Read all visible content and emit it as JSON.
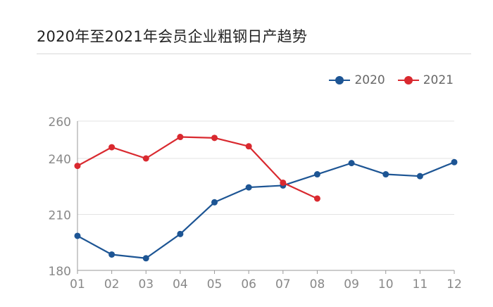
{
  "title": "2020年至2021年会员企业粗钢日产趋势",
  "chart_data": {
    "type": "line",
    "categories": [
      "01",
      "02",
      "03",
      "04",
      "05",
      "06",
      "07",
      "08",
      "09",
      "10",
      "11",
      "12"
    ],
    "y_ticks": [
      180,
      210,
      240,
      260
    ],
    "ylim": [
      180,
      260
    ],
    "grid": true,
    "legend_position": "top-right",
    "series": [
      {
        "name": "2020",
        "color": "#1d5594",
        "values": [
          198.5,
          188.5,
          186.5,
          199.5,
          216.5,
          224.5,
          225.5,
          231.5,
          237.5,
          231.5,
          230.5,
          238
        ]
      },
      {
        "name": "2021",
        "color": "#d9292f",
        "values": [
          236,
          246,
          240,
          251.5,
          251,
          246.5,
          227,
          218.5,
          null,
          null,
          null,
          null
        ]
      }
    ]
  }
}
